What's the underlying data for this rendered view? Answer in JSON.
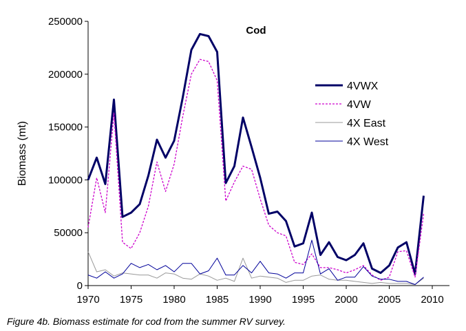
{
  "caption": "Figure 4b. Biomass estimate for cod from the summer RV survey.",
  "chart_data": {
    "type": "line",
    "title": "Cod",
    "xlabel": "",
    "ylabel": "Biomass (mt)",
    "xlim": [
      1970,
      2012
    ],
    "ylim": [
      0,
      250000
    ],
    "x_ticks": [
      1970,
      1975,
      1980,
      1985,
      1990,
      1995,
      2000,
      2005,
      2010
    ],
    "y_ticks": [
      0,
      50000,
      100000,
      150000,
      200000,
      250000
    ],
    "y_tick_labels": [
      "0",
      "50000",
      "100000",
      "150000",
      "200000",
      "250000"
    ],
    "grid": false,
    "legend_position": "right",
    "x": [
      1970,
      1971,
      1972,
      1973,
      1974,
      1975,
      1976,
      1977,
      1978,
      1979,
      1980,
      1981,
      1982,
      1983,
      1984,
      1985,
      1986,
      1987,
      1988,
      1989,
      1990,
      1991,
      1992,
      1993,
      1994,
      1995,
      1996,
      1997,
      1998,
      1999,
      2000,
      2001,
      2002,
      2003,
      2004,
      2005,
      2006,
      2007,
      2008,
      2009
    ],
    "series": [
      {
        "name": "4VWX",
        "color": "#000066",
        "style": "solid-thick",
        "values": [
          100000,
          121000,
          96000,
          176000,
          65000,
          69000,
          77000,
          104000,
          138000,
          121000,
          137000,
          178000,
          223000,
          238000,
          236000,
          221000,
          97000,
          113000,
          159000,
          131000,
          102000,
          68000,
          70000,
          61000,
          37000,
          40000,
          69000,
          29000,
          41000,
          27000,
          24000,
          29000,
          40000,
          16000,
          12000,
          19000,
          36000,
          41000,
          11000,
          85000
        ]
      },
      {
        "name": "4VW",
        "color": "#cc00cc",
        "style": "dotted",
        "values": [
          55000,
          102000,
          69000,
          163000,
          41000,
          35000,
          50000,
          75000,
          117000,
          89000,
          115000,
          160000,
          200000,
          214000,
          212000,
          194000,
          80000,
          98000,
          113000,
          110000,
          82000,
          57000,
          50000,
          47000,
          22000,
          20000,
          30000,
          17000,
          17000,
          15000,
          12000,
          15000,
          19000,
          10000,
          5000,
          8000,
          32000,
          33000,
          8000,
          68000
        ]
      },
      {
        "name": "4X East",
        "color": "#999999",
        "style": "solid-thin",
        "values": [
          32000,
          13000,
          15000,
          9000,
          12000,
          11000,
          10000,
          10000,
          7000,
          12000,
          11000,
          7000,
          6000,
          11000,
          9000,
          5000,
          7000,
          4000,
          26000,
          7000,
          9000,
          8000,
          7000,
          3000,
          5000,
          5000,
          9000,
          10000,
          6000,
          5000,
          5000,
          4000,
          3000,
          2000,
          3000,
          2000,
          2000,
          2000,
          1000,
          7000
        ]
      },
      {
        "name": "4X West",
        "color": "#000099",
        "style": "solid-thin",
        "values": [
          10000,
          7000,
          13000,
          7000,
          11000,
          21000,
          17000,
          20000,
          15000,
          19000,
          13000,
          21000,
          21000,
          11000,
          14000,
          26000,
          10000,
          10000,
          19000,
          12000,
          23000,
          12000,
          11000,
          7000,
          12000,
          12000,
          43000,
          11000,
          16000,
          5000,
          8000,
          8000,
          18000,
          9000,
          6000,
          6000,
          4000,
          4000,
          1000,
          8000
        ]
      }
    ]
  }
}
